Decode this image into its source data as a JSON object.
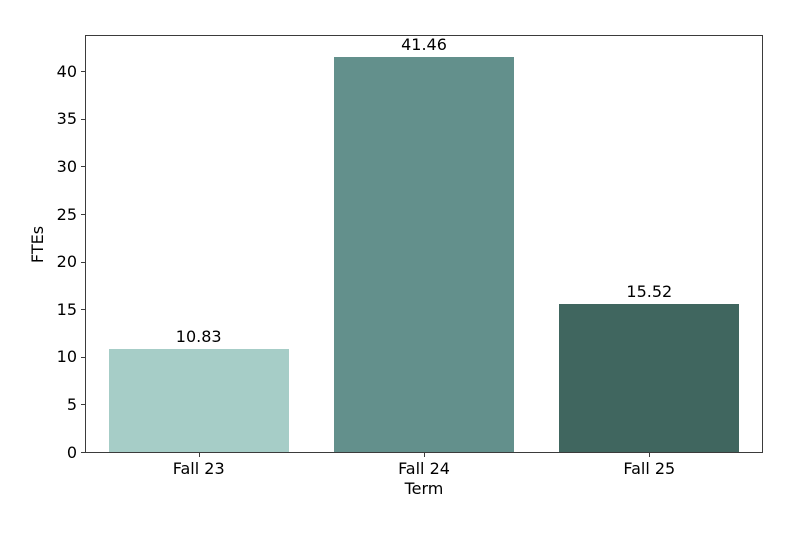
{
  "figure": {
    "background": "#ffffff",
    "spine_color": "#3b3b3b",
    "text_color": "#000000"
  },
  "chart_data": {
    "type": "bar",
    "title": "",
    "xlabel": "Term",
    "ylabel": "FTEs",
    "categories": [
      "Fall 23",
      "Fall 24",
      "Fall 25"
    ],
    "values": [
      10.83,
      41.46,
      15.52
    ],
    "bar_labels": [
      "10.83",
      "41.46",
      "15.52"
    ],
    "bar_colors": [
      "#a6cdc7",
      "#63908c",
      "#40665f"
    ],
    "ylim": [
      0,
      43.7
    ],
    "yticks": [
      0,
      5,
      10,
      15,
      20,
      25,
      30,
      35,
      40
    ],
    "bar_width_fraction": 0.8,
    "grid": false,
    "legend": "none"
  }
}
